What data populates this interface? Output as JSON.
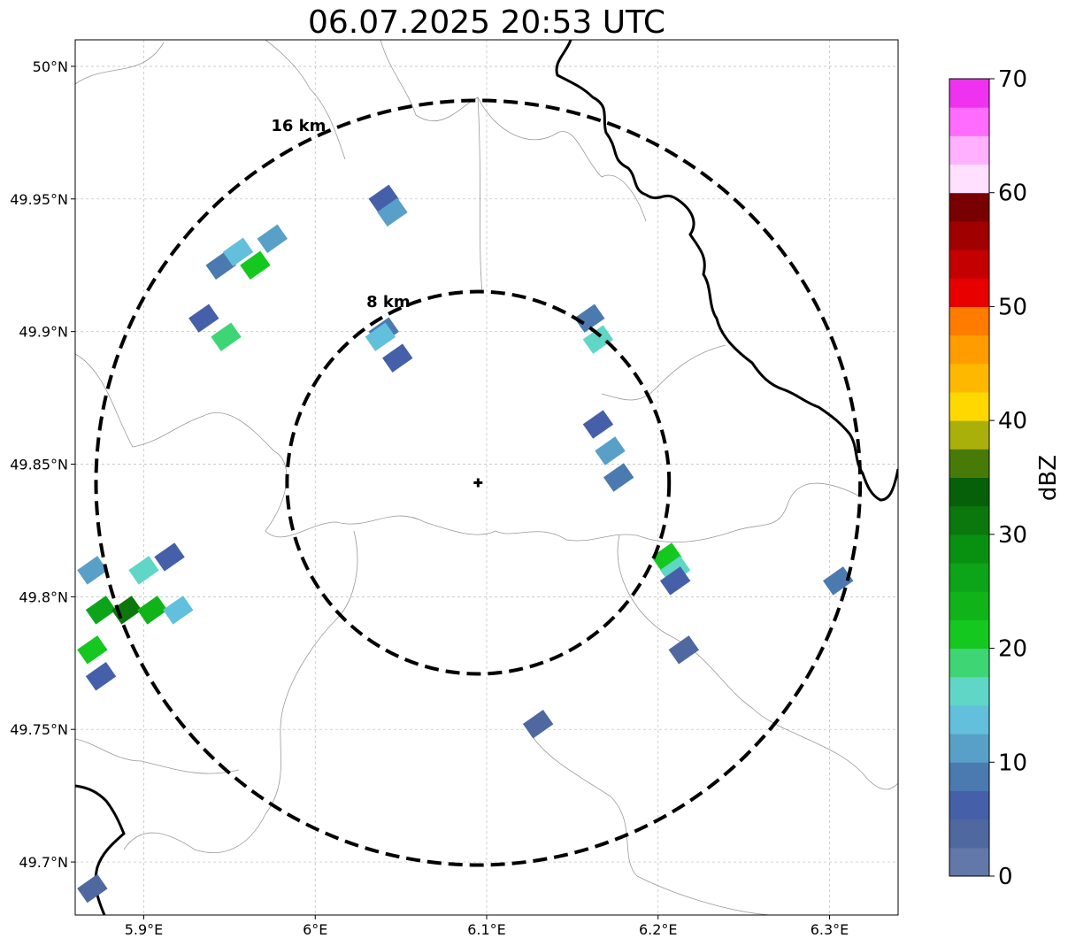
{
  "title": "06.07.2025 20:53 UTC",
  "map": {
    "lon_range": [
      5.86,
      6.34
    ],
    "lat_range": [
      49.68,
      50.01
    ],
    "x_ticks": [
      {
        "value": 5.9,
        "label": "5.9°E"
      },
      {
        "value": 6.0,
        "label": "6°E"
      },
      {
        "value": 6.1,
        "label": "6.1°E"
      },
      {
        "value": 6.2,
        "label": "6.2°E"
      },
      {
        "value": 6.3,
        "label": "6.3°E"
      }
    ],
    "y_ticks": [
      {
        "value": 49.7,
        "label": "49.7°N"
      },
      {
        "value": 49.75,
        "label": "49.75°N"
      },
      {
        "value": 49.8,
        "label": "49.8°N"
      },
      {
        "value": 49.85,
        "label": "49.85°N"
      },
      {
        "value": 49.9,
        "label": "49.9°N"
      },
      {
        "value": 49.95,
        "label": "49.95°N"
      },
      {
        "value": 50.0,
        "label": "50°N"
      }
    ],
    "grid": true,
    "radar_site": {
      "lon": 6.095,
      "lat": 49.843
    },
    "range_rings": [
      {
        "radius_km": 8,
        "label": "8 km"
      },
      {
        "radius_km": 16,
        "label": "16 km"
      }
    ],
    "echoes": [
      {
        "lon": 5.945,
        "lat": 49.925,
        "dbz": 8
      },
      {
        "lon": 5.955,
        "lat": 49.93,
        "dbz": 14
      },
      {
        "lon": 5.965,
        "lat": 49.925,
        "dbz": 22
      },
      {
        "lon": 5.975,
        "lat": 49.935,
        "dbz": 12
      },
      {
        "lon": 5.935,
        "lat": 49.905,
        "dbz": 6
      },
      {
        "lon": 5.948,
        "lat": 49.898,
        "dbz": 18
      },
      {
        "lon": 6.04,
        "lat": 49.95,
        "dbz": 6
      },
      {
        "lon": 6.045,
        "lat": 49.945,
        "dbz": 12
      },
      {
        "lon": 6.04,
        "lat": 49.9,
        "dbz": 8
      },
      {
        "lon": 6.038,
        "lat": 49.898,
        "dbz": 14
      },
      {
        "lon": 6.048,
        "lat": 49.89,
        "dbz": 6
      },
      {
        "lon": 6.16,
        "lat": 49.905,
        "dbz": 8
      },
      {
        "lon": 6.165,
        "lat": 49.897,
        "dbz": 15
      },
      {
        "lon": 6.165,
        "lat": 49.865,
        "dbz": 6
      },
      {
        "lon": 6.172,
        "lat": 49.855,
        "dbz": 12
      },
      {
        "lon": 6.177,
        "lat": 49.845,
        "dbz": 9
      },
      {
        "lon": 6.205,
        "lat": 49.815,
        "dbz": 22
      },
      {
        "lon": 6.21,
        "lat": 49.81,
        "dbz": 17
      },
      {
        "lon": 6.21,
        "lat": 49.806,
        "dbz": 6
      },
      {
        "lon": 6.305,
        "lat": 49.806,
        "dbz": 8
      },
      {
        "lon": 5.875,
        "lat": 49.795,
        "dbz": 25
      },
      {
        "lon": 5.89,
        "lat": 49.795,
        "dbz": 32
      },
      {
        "lon": 5.905,
        "lat": 49.795,
        "dbz": 24
      },
      {
        "lon": 5.92,
        "lat": 49.795,
        "dbz": 14
      },
      {
        "lon": 5.87,
        "lat": 49.78,
        "dbz": 22
      },
      {
        "lon": 5.87,
        "lat": 49.81,
        "dbz": 10
      },
      {
        "lon": 5.875,
        "lat": 49.77,
        "dbz": 5
      },
      {
        "lon": 5.9,
        "lat": 49.81,
        "dbz": 16
      },
      {
        "lon": 5.915,
        "lat": 49.815,
        "dbz": 6
      },
      {
        "lon": 6.13,
        "lat": 49.752,
        "dbz": 4
      },
      {
        "lon": 6.215,
        "lat": 49.78,
        "dbz": 4
      },
      {
        "lon": 5.87,
        "lat": 49.69,
        "dbz": 4
      }
    ]
  },
  "colorbar": {
    "label": "dBZ",
    "min": 0,
    "max": 70,
    "ticks": [
      "0",
      "10",
      "20",
      "30",
      "40",
      "50",
      "60",
      "70"
    ],
    "colors": [
      "#6278a8",
      "#5068a0",
      "#4560a8",
      "#4a7ab0",
      "#58a0c8",
      "#62c0dc",
      "#60d6c6",
      "#3ed674",
      "#14c820",
      "#10b418",
      "#0ca418",
      "#089010",
      "#0a780c",
      "#06600a",
      "#487a08",
      "#aab00a",
      "#ffd800",
      "#ffb800",
      "#ff9c00",
      "#ff7c00",
      "#e80000",
      "#c40000",
      "#a00000",
      "#780000",
      "#ffe0ff",
      "#ffb0ff",
      "#ff6cff",
      "#ef32ef"
    ]
  }
}
